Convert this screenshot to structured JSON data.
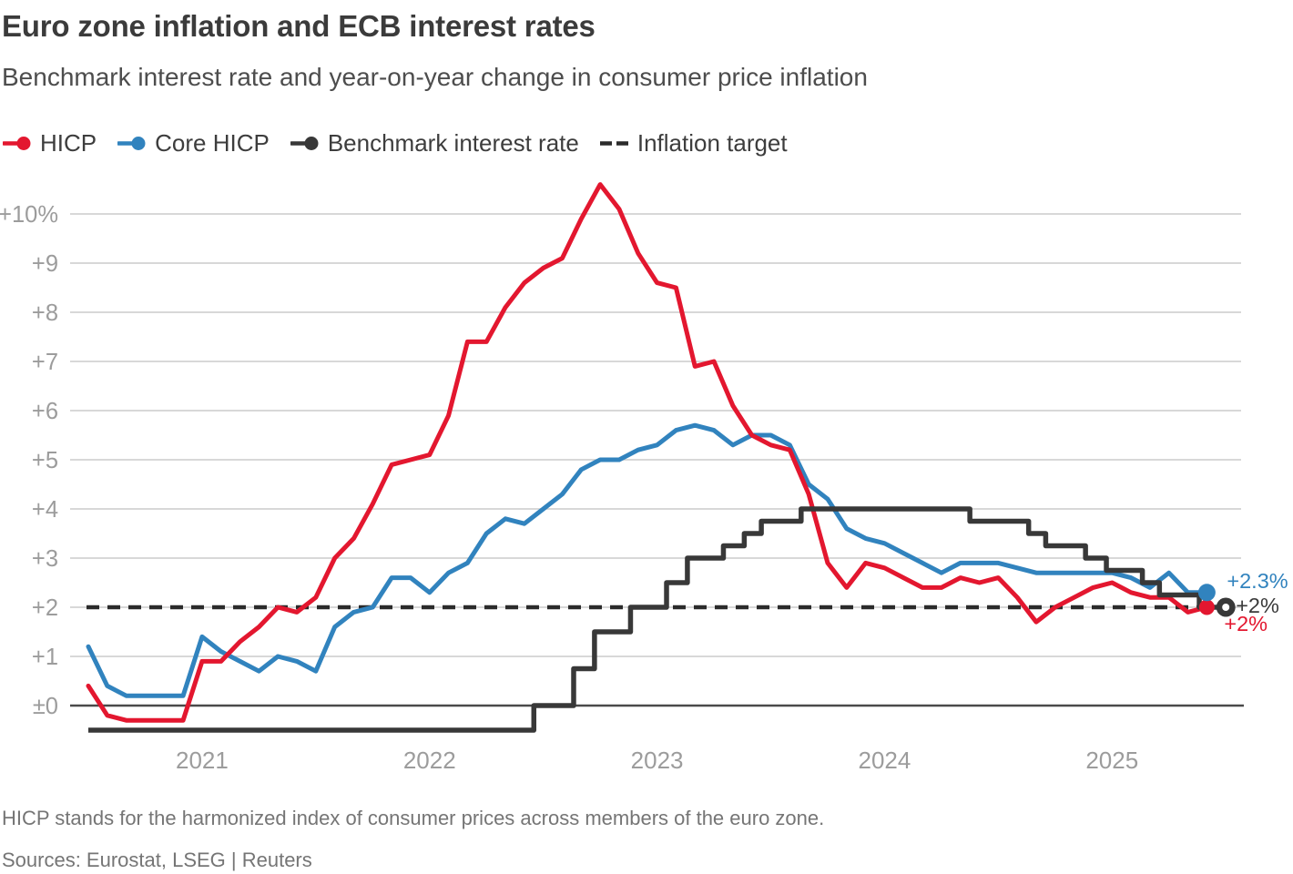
{
  "header": {
    "title": "Euro zone inflation and ECB interest rates",
    "subtitle": "Benchmark interest rate and year-on-year change in consumer price inflation"
  },
  "legend": [
    {
      "id": "hicp",
      "label": "HICP",
      "color": "#E3172F",
      "style": "line-dot"
    },
    {
      "id": "core-hicp",
      "label": "Core HICP",
      "color": "#3183BE",
      "style": "line-dot"
    },
    {
      "id": "benchmark",
      "label": "Benchmark interest rate",
      "color": "#383838",
      "style": "line-dot"
    },
    {
      "id": "target",
      "label": "Inflation target",
      "color": "#2B2B2B",
      "style": "dashed"
    }
  ],
  "footer": {
    "note": "HICP stands for the harmonized index of consumer prices across members of the euro zone.",
    "sources": "Sources: Eurostat, LSEG | Reuters"
  },
  "colors": {
    "hicp_red": "#E3172F",
    "core_blue": "#3183BE",
    "benchmark_dark": "#383838",
    "target_dash": "#2B2B2B",
    "grid": "#CCCCCC",
    "zero_axis": "#4A4A4A",
    "tick_label": "#9C9C9C",
    "title_text": "#3B3B3B",
    "subtitle_text": "#4D4D4D",
    "footnote_text": "#757575"
  },
  "chart_data": {
    "type": "line",
    "title": "Euro zone inflation and ECB interest rates",
    "x_start_month": "2020-07",
    "x_end_month": "2025-06",
    "months_span": 60,
    "ylim": [
      -0.85,
      10.75
    ],
    "grid": true,
    "y_ticks": [
      {
        "label": "±0",
        "value": 0
      },
      {
        "label": "+1",
        "value": 1
      },
      {
        "label": "+2",
        "value": 2
      },
      {
        "label": "+3",
        "value": 3
      },
      {
        "label": "+4",
        "value": 4
      },
      {
        "label": "+5",
        "value": 5
      },
      {
        "label": "+6",
        "value": 6
      },
      {
        "label": "+7",
        "value": 7
      },
      {
        "label": "+8",
        "value": 8
      },
      {
        "label": "+9",
        "value": 9
      },
      {
        "label": "+10%",
        "value": 10
      }
    ],
    "x_ticks": [
      {
        "label": "2021",
        "month_index": 6
      },
      {
        "label": "2022",
        "month_index": 18
      },
      {
        "label": "2023",
        "month_index": 30
      },
      {
        "label": "2024",
        "month_index": 42
      },
      {
        "label": "2025",
        "month_index": 54
      }
    ],
    "series": [
      {
        "name": "HICP",
        "style": "line",
        "color": "#E3172F",
        "monthly_values": [
          0.4,
          -0.2,
          -0.3,
          -0.3,
          -0.3,
          -0.3,
          0.9,
          0.9,
          1.3,
          1.6,
          2.0,
          1.9,
          2.2,
          3.0,
          3.4,
          4.1,
          4.9,
          5.0,
          5.1,
          5.9,
          7.4,
          7.4,
          8.1,
          8.6,
          8.9,
          9.1,
          9.9,
          10.6,
          10.1,
          9.2,
          8.6,
          8.5,
          6.9,
          7.0,
          6.1,
          5.5,
          5.3,
          5.2,
          4.3,
          2.9,
          2.4,
          2.9,
          2.8,
          2.6,
          2.4,
          2.4,
          2.6,
          2.5,
          2.6,
          2.2,
          1.7,
          2.0,
          2.2,
          2.4,
          2.5,
          2.3,
          2.2,
          2.2,
          1.9,
          2.0
        ]
      },
      {
        "name": "Core HICP",
        "style": "line",
        "color": "#3183BE",
        "monthly_values": [
          1.2,
          0.4,
          0.2,
          0.2,
          0.2,
          0.2,
          1.4,
          1.1,
          0.9,
          0.7,
          1.0,
          0.9,
          0.7,
          1.6,
          1.9,
          2.0,
          2.6,
          2.6,
          2.3,
          2.7,
          2.9,
          3.5,
          3.8,
          3.7,
          4.0,
          4.3,
          4.8,
          5.0,
          5.0,
          5.2,
          5.3,
          5.6,
          5.7,
          5.6,
          5.3,
          5.5,
          5.5,
          5.3,
          4.5,
          4.2,
          3.6,
          3.4,
          3.3,
          3.1,
          2.9,
          2.7,
          2.9,
          2.9,
          2.9,
          2.8,
          2.7,
          2.7,
          2.7,
          2.7,
          2.7,
          2.6,
          2.4,
          2.7,
          2.3,
          2.3
        ]
      },
      {
        "name": "Benchmark interest rate",
        "style": "step",
        "color": "#383838",
        "breakpoints": [
          [
            0,
            -0.5
          ],
          [
            23.5,
            0.0
          ],
          [
            25.6,
            0.75
          ],
          [
            26.7,
            1.5
          ],
          [
            28.6,
            2.0
          ],
          [
            30.5,
            2.5
          ],
          [
            31.6,
            3.0
          ],
          [
            33.5,
            3.25
          ],
          [
            34.6,
            3.5
          ],
          [
            35.5,
            3.75
          ],
          [
            37.6,
            4.0
          ],
          [
            46.5,
            3.75
          ],
          [
            49.6,
            3.5
          ],
          [
            50.5,
            3.25
          ],
          [
            52.6,
            3.0
          ],
          [
            53.7,
            2.75
          ],
          [
            55.6,
            2.5
          ],
          [
            56.5,
            2.25
          ],
          [
            58.6,
            2.0
          ]
        ],
        "end_month": 60
      },
      {
        "name": "Inflation target",
        "style": "dashed-horizontal",
        "color": "#2B2B2B",
        "value": 2
      }
    ],
    "end_markers": [
      {
        "series": "HICP",
        "month": 59,
        "value": 2.0,
        "dot": "solid",
        "label": "+2%",
        "label_color": "#E3172F"
      },
      {
        "series": "Core HICP",
        "month": 59,
        "value": 2.3,
        "dot": "solid",
        "label": "+2.3%",
        "label_color": "#3183BE"
      },
      {
        "series": "Benchmark interest rate",
        "month": 60,
        "value": 2.0,
        "dot": "ring",
        "label": "+2%",
        "label_color": "#3A3A3A"
      }
    ],
    "legend_position": "top"
  }
}
